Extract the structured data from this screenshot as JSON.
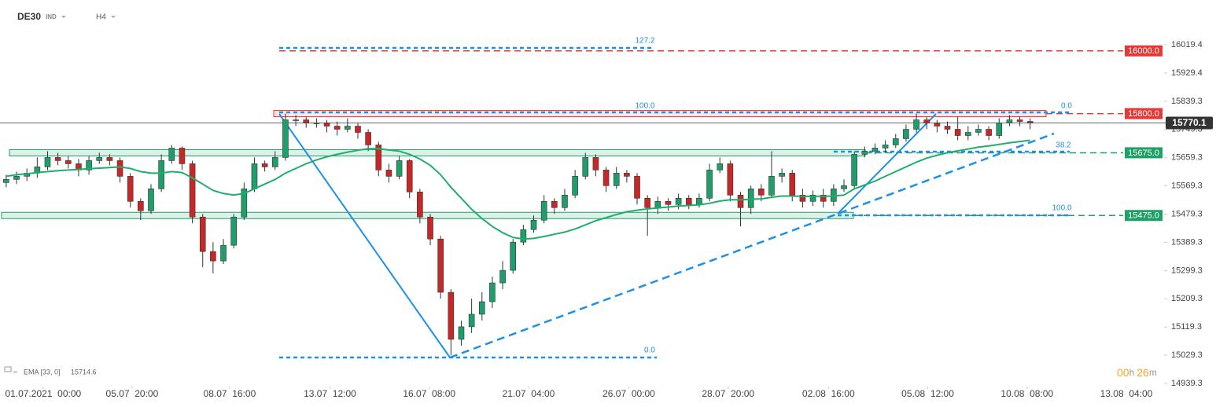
{
  "chart_data": {
    "type": "candlestick",
    "symbol": "DE30",
    "market": "IND",
    "timeframe": "H4",
    "up_color": "#1e9e6a",
    "down_color": "#c62828",
    "open": [
      15580,
      15590,
      15600,
      15610,
      15630,
      15660,
      15650,
      15640,
      15620,
      15650,
      15660,
      15650,
      15600,
      15520,
      15490,
      15560,
      15650,
      15690,
      15640,
      15470,
      15360,
      15330,
      15380,
      15470,
      15560,
      15640,
      15630,
      15660,
      15780,
      15780,
      15770,
      15770,
      15760,
      15750,
      15760,
      15740,
      15700,
      15620,
      15600,
      15650,
      15550,
      15470,
      15400,
      15230,
      15080,
      15120,
      15160,
      15200,
      15260,
      15300,
      15390,
      15430,
      15460,
      15520,
      15500,
      15540,
      15600,
      15660,
      15620,
      15570,
      15610,
      15600,
      15530,
      15500,
      15520,
      15510,
      15530,
      15510,
      15530,
      15620,
      15640,
      15540,
      15500,
      15560,
      15540,
      15600,
      15610,
      15540,
      15520,
      15540,
      15520,
      15560,
      15570,
      15670,
      15680,
      15690,
      15700,
      15720,
      15750,
      15780,
      15770,
      15760,
      15750,
      15730,
      15740,
      15750,
      15730,
      15770,
      15780,
      15775
    ],
    "high": [
      15605,
      15615,
      15625,
      15660,
      15680,
      15675,
      15665,
      15655,
      15665,
      15675,
      15670,
      15660,
      15610,
      15530,
      15575,
      15670,
      15700,
      15695,
      15650,
      15480,
      15390,
      15400,
      15480,
      15580,
      15660,
      15650,
      15680,
      15800,
      15795,
      15790,
      15785,
      15780,
      15775,
      15785,
      15770,
      15750,
      15710,
      15640,
      15665,
      15655,
      15560,
      15480,
      15410,
      15240,
      15140,
      15210,
      15230,
      15280,
      15330,
      15400,
      15445,
      15475,
      15540,
      15530,
      15560,
      15620,
      15675,
      15670,
      15630,
      15630,
      15620,
      15610,
      15540,
      15535,
      15530,
      15545,
      15540,
      15545,
      15640,
      15660,
      15650,
      15550,
      15570,
      15575,
      15680,
      15625,
      15620,
      15560,
      15555,
      15560,
      15575,
      15590,
      15680,
      15695,
      15705,
      15715,
      15735,
      15765,
      15800,
      15790,
      15780,
      15775,
      15790,
      15760,
      15765,
      15760,
      15785,
      15795,
      15790,
      15785
    ],
    "low": [
      15565,
      15575,
      15585,
      15595,
      15620,
      15635,
      15625,
      15600,
      15605,
      15640,
      15635,
      15580,
      15500,
      15460,
      15480,
      15550,
      15640,
      15620,
      15450,
      15310,
      15290,
      15320,
      15370,
      15460,
      15550,
      15615,
      15620,
      15650,
      15760,
      15755,
      15755,
      15740,
      15730,
      15740,
      15720,
      15680,
      15600,
      15580,
      15590,
      15530,
      15450,
      15380,
      15210,
      15030,
      15060,
      15100,
      15140,
      15180,
      15240,
      15290,
      15380,
      15420,
      15450,
      15480,
      15490,
      15530,
      15590,
      15600,
      15550,
      15560,
      15580,
      15510,
      15410,
      15480,
      15490,
      15495,
      15495,
      15500,
      15520,
      15610,
      15520,
      15440,
      15480,
      15520,
      15530,
      15580,
      15520,
      15500,
      15505,
      15500,
      15505,
      15550,
      15560,
      15660,
      15670,
      15675,
      15690,
      15710,
      15740,
      15750,
      15740,
      15735,
      15715,
      15715,
      15730,
      15715,
      15720,
      15760,
      15760,
      15750
    ],
    "close": [
      15590,
      15600,
      15610,
      15630,
      15660,
      15650,
      15640,
      15620,
      15650,
      15660,
      15650,
      15600,
      15520,
      15490,
      15560,
      15650,
      15690,
      15640,
      15470,
      15360,
      15330,
      15380,
      15470,
      15560,
      15640,
      15630,
      15660,
      15780,
      15780,
      15770,
      15770,
      15760,
      15750,
      15760,
      15740,
      15700,
      15620,
      15600,
      15650,
      15550,
      15470,
      15400,
      15230,
      15080,
      15120,
      15160,
      15200,
      15260,
      15300,
      15390,
      15430,
      15460,
      15520,
      15500,
      15540,
      15600,
      15660,
      15620,
      15570,
      15610,
      15600,
      15530,
      15500,
      15520,
      15510,
      15530,
      15510,
      15530,
      15620,
      15640,
      15540,
      15500,
      15560,
      15540,
      15600,
      15610,
      15540,
      15520,
      15540,
      15520,
      15560,
      15570,
      15670,
      15680,
      15690,
      15700,
      15720,
      15750,
      15780,
      15770,
      15760,
      15750,
      15730,
      15740,
      15750,
      15730,
      15770,
      15780,
      15775,
      15770
    ],
    "ema": {
      "name": "EMA [33, 0]",
      "color": "#1fae6c",
      "values": [
        15600,
        15605,
        15608,
        15612,
        15615,
        15618,
        15620,
        15622,
        15624,
        15626,
        15628,
        15630,
        15625,
        15615,
        15610,
        15610,
        15615,
        15612,
        15595,
        15575,
        15555,
        15545,
        15540,
        15545,
        15560,
        15575,
        15590,
        15610,
        15625,
        15640,
        15652,
        15662,
        15670,
        15677,
        15683,
        15688,
        15688,
        15684,
        15680,
        15670,
        15655,
        15635,
        15605,
        15565,
        15530,
        15495,
        15465,
        15440,
        15420,
        15405,
        15400,
        15402,
        15408,
        15415,
        15422,
        15432,
        15445,
        15458,
        15468,
        15478,
        15487,
        15492,
        15496,
        15499,
        15502,
        15505,
        15507,
        15509,
        15514,
        15521,
        15525,
        15525,
        15527,
        15528,
        15533,
        15537,
        15537,
        15536,
        15536,
        15536,
        15537,
        15540,
        15560,
        15572,
        15585,
        15600,
        15615,
        15630,
        15645,
        15658,
        15667,
        15675,
        15681,
        15687,
        15693,
        15697,
        15702,
        15707,
        15711,
        15714.6
      ]
    },
    "levels": [
      {
        "value": 16000,
        "label": "16000.0",
        "color": "#e53935"
      },
      {
        "value": 15800,
        "label": "15800.0",
        "color": "#e53935"
      },
      {
        "value": 15675,
        "label": "15675.0",
        "color": "#1fa067"
      },
      {
        "value": 15475,
        "label": "15475.0",
        "color": "#1fa067"
      }
    ],
    "current_price": 15770.1,
    "fib_labels": [
      "127.2",
      "100.0",
      "0.0",
      "0.0",
      "38.2",
      "100.0"
    ],
    "timer": [
      "00",
      "h",
      "26",
      "m"
    ],
    "xlim": [
      -0.6,
      111.95
    ],
    "xticks": [
      {
        "value": 3.57,
        "label": "01.07.2021  00:00"
      },
      {
        "value": 12.17,
        "label": "05.07  20:00"
      },
      {
        "value": 21.6,
        "label": "08.07  16:00"
      },
      {
        "value": 31.3,
        "label": "13.07  12:00"
      },
      {
        "value": 40.9,
        "label": "16.07  08:00"
      },
      {
        "value": 50.5,
        "label": "21.07  04:00"
      },
      {
        "value": 60.2,
        "label": "26.07  00:00"
      },
      {
        "value": 69.8,
        "label": "28.07  20:00"
      },
      {
        "value": 79.5,
        "label": "02.08  16:00"
      },
      {
        "value": 89.1,
        "label": "05.08  12:00"
      },
      {
        "value": 98.7,
        "label": "10.08  08:00"
      },
      {
        "value": 108.3,
        "label": "13.08  04:00"
      }
    ],
    "ylim": [
      14934.3,
      16162.3
    ],
    "yticks": [
      16019.4,
      15929.4,
      15839.3,
      15749.3,
      15659.3,
      15569.3,
      15479.3,
      15389.3,
      15299.3,
      15209.3,
      15119.3,
      15029.3,
      14939.3
    ]
  }
}
